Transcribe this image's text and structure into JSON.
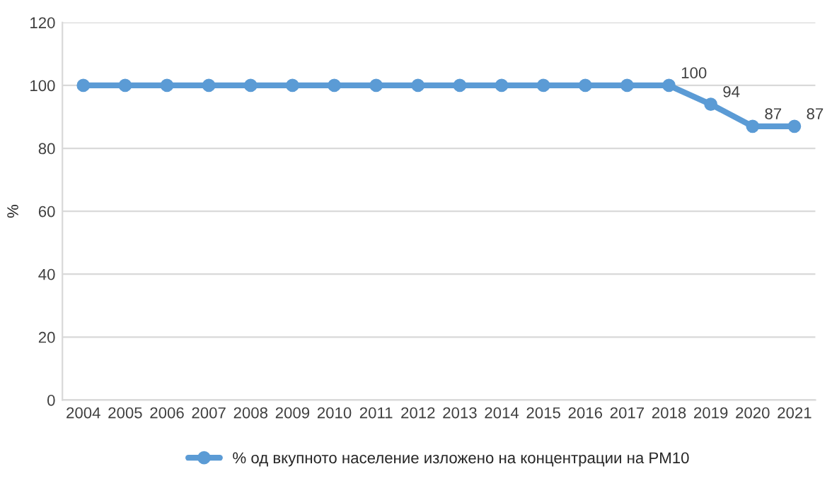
{
  "chart_data": {
    "type": "line",
    "ylabel": "%",
    "categories": [
      "2004",
      "2005",
      "2006",
      "2007",
      "2008",
      "2009",
      "2010",
      "2011",
      "2012",
      "2013",
      "2014",
      "2015",
      "2016",
      "2017",
      "2018",
      "2019",
      "2020",
      "2021"
    ],
    "series": [
      {
        "name": "% од вкупното население изложено на концентрации на PM10",
        "color": "#5b9bd5",
        "values": [
          100,
          100,
          100,
          100,
          100,
          100,
          100,
          100,
          100,
          100,
          100,
          100,
          100,
          100,
          100,
          94,
          87,
          87
        ],
        "value_labels": [
          null,
          null,
          null,
          null,
          null,
          null,
          null,
          null,
          null,
          null,
          null,
          null,
          null,
          null,
          "100",
          "94",
          "87",
          "87"
        ]
      }
    ],
    "ylim": [
      0,
      120
    ],
    "yticks": [
      0,
      20,
      40,
      60,
      80,
      100,
      120
    ],
    "grid": "y",
    "legend": "bottom",
    "marker": "circle",
    "line_style": "solid"
  }
}
